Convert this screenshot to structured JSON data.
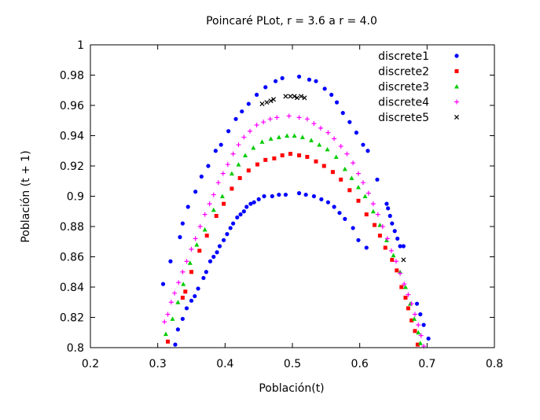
{
  "chart_data": {
    "type": "scatter",
    "title": "Poincaré PLot, r = 3.6 a r = 4.0",
    "xlabel": "Población(t)",
    "ylabel": "Población (t + 1)",
    "xlim": [
      0.2,
      0.8
    ],
    "ylim": [
      0.8,
      1.0
    ],
    "xticks": [
      "0.2",
      "0.3",
      "0.4",
      "0.5",
      "0.6",
      "0.7",
      "0.8"
    ],
    "yticks": [
      "0.8",
      "0.82",
      "0.84",
      "0.86",
      "0.88",
      "0.9",
      "0.92",
      "0.94",
      "0.96",
      "0.98",
      "1"
    ],
    "grid": false,
    "legend_position": "top-right",
    "series": [
      {
        "name": "discrete1",
        "color": "#0000ff",
        "marker": "circle",
        "points": [
          [
            0.308,
            0.842
          ],
          [
            0.319,
            0.857
          ],
          [
            0.326,
            0.802
          ],
          [
            0.33,
            0.812
          ],
          [
            0.333,
            0.873
          ],
          [
            0.337,
            0.882
          ],
          [
            0.337,
            0.819
          ],
          [
            0.343,
            0.826
          ],
          [
            0.345,
            0.893
          ],
          [
            0.35,
            0.831
          ],
          [
            0.355,
            0.834
          ],
          [
            0.356,
            0.903
          ],
          [
            0.36,
            0.839
          ],
          [
            0.365,
            0.913
          ],
          [
            0.368,
            0.846
          ],
          [
            0.372,
            0.85
          ],
          [
            0.375,
            0.92
          ],
          [
            0.378,
            0.857
          ],
          [
            0.383,
            0.86
          ],
          [
            0.386,
            0.93
          ],
          [
            0.388,
            0.863
          ],
          [
            0.392,
            0.867
          ],
          [
            0.394,
            0.934
          ],
          [
            0.398,
            0.871
          ],
          [
            0.403,
            0.875
          ],
          [
            0.405,
            0.943
          ],
          [
            0.408,
            0.879
          ],
          [
            0.412,
            0.882
          ],
          [
            0.416,
            0.951
          ],
          [
            0.418,
            0.886
          ],
          [
            0.423,
            0.888
          ],
          [
            0.425,
            0.956
          ],
          [
            0.428,
            0.89
          ],
          [
            0.432,
            0.893
          ],
          [
            0.435,
            0.961
          ],
          [
            0.438,
            0.895
          ],
          [
            0.443,
            0.896
          ],
          [
            0.447,
            0.967
          ],
          [
            0.45,
            0.898
          ],
          [
            0.458,
            0.9
          ],
          [
            0.46,
            0.972
          ],
          [
            0.47,
            0.9
          ],
          [
            0.475,
            0.976
          ],
          [
            0.48,
            0.901
          ],
          [
            0.485,
            0.978
          ],
          [
            0.49,
            0.901
          ],
          [
            0.51,
            0.902
          ],
          [
            0.51,
            0.979
          ],
          [
            0.52,
            0.901
          ],
          [
            0.525,
            0.977
          ],
          [
            0.532,
            0.9
          ],
          [
            0.535,
            0.976
          ],
          [
            0.543,
            0.898
          ],
          [
            0.548,
            0.971
          ],
          [
            0.553,
            0.896
          ],
          [
            0.558,
            0.967
          ],
          [
            0.562,
            0.893
          ],
          [
            0.566,
            0.962
          ],
          [
            0.57,
            0.889
          ],
          [
            0.575,
            0.955
          ],
          [
            0.578,
            0.885
          ],
          [
            0.585,
            0.949
          ],
          [
            0.59,
            0.879
          ],
          [
            0.595,
            0.942
          ],
          [
            0.598,
            0.871
          ],
          [
            0.605,
            0.934
          ],
          [
            0.61,
            0.866
          ],
          [
            0.612,
            0.93
          ],
          [
            0.626,
            0.911
          ],
          [
            0.64,
            0.895
          ],
          [
            0.642,
            0.892
          ],
          [
            0.645,
            0.887
          ],
          [
            0.648,
            0.882
          ],
          [
            0.652,
            0.877
          ],
          [
            0.656,
            0.872
          ],
          [
            0.66,
            0.867
          ],
          [
            0.665,
            0.867
          ],
          [
            0.685,
            0.829
          ],
          [
            0.69,
            0.822
          ],
          [
            0.695,
            0.815
          ],
          [
            0.702,
            0.806
          ]
        ]
      },
      {
        "name": "discrete2",
        "color": "#ff0000",
        "marker": "square",
        "points": [
          [
            0.315,
            0.804
          ],
          [
            0.337,
            0.833
          ],
          [
            0.341,
            0.837
          ],
          [
            0.35,
            0.85
          ],
          [
            0.362,
            0.864
          ],
          [
            0.373,
            0.874
          ],
          [
            0.387,
            0.887
          ],
          [
            0.398,
            0.895
          ],
          [
            0.41,
            0.905
          ],
          [
            0.422,
            0.912
          ],
          [
            0.435,
            0.917
          ],
          [
            0.448,
            0.921
          ],
          [
            0.46,
            0.924
          ],
          [
            0.473,
            0.925
          ],
          [
            0.485,
            0.927
          ],
          [
            0.497,
            0.928
          ],
          [
            0.51,
            0.927
          ],
          [
            0.522,
            0.926
          ],
          [
            0.535,
            0.923
          ],
          [
            0.547,
            0.92
          ],
          [
            0.56,
            0.916
          ],
          [
            0.572,
            0.911
          ],
          [
            0.585,
            0.904
          ],
          [
            0.598,
            0.897
          ],
          [
            0.61,
            0.888
          ],
          [
            0.622,
            0.881
          ],
          [
            0.63,
            0.874
          ],
          [
            0.638,
            0.866
          ],
          [
            0.648,
            0.858
          ],
          [
            0.655,
            0.851
          ],
          [
            0.662,
            0.84
          ],
          [
            0.668,
            0.833
          ],
          [
            0.672,
            0.826
          ],
          [
            0.677,
            0.818
          ],
          [
            0.682,
            0.811
          ],
          [
            0.686,
            0.802
          ]
        ]
      },
      {
        "name": "discrete3",
        "color": "#00cc00",
        "marker": "triangle",
        "points": [
          [
            0.312,
            0.809
          ],
          [
            0.322,
            0.819
          ],
          [
            0.33,
            0.83
          ],
          [
            0.338,
            0.842
          ],
          [
            0.348,
            0.856
          ],
          [
            0.358,
            0.868
          ],
          [
            0.37,
            0.878
          ],
          [
            0.383,
            0.891
          ],
          [
            0.396,
            0.9
          ],
          [
            0.41,
            0.915
          ],
          [
            0.42,
            0.921
          ],
          [
            0.43,
            0.927
          ],
          [
            0.442,
            0.932
          ],
          [
            0.455,
            0.936
          ],
          [
            0.468,
            0.938
          ],
          [
            0.48,
            0.939
          ],
          [
            0.492,
            0.94
          ],
          [
            0.503,
            0.94
          ],
          [
            0.515,
            0.939
          ],
          [
            0.528,
            0.937
          ],
          [
            0.54,
            0.934
          ],
          [
            0.552,
            0.931
          ],
          [
            0.565,
            0.926
          ],
          [
            0.578,
            0.918
          ],
          [
            0.588,
            0.912
          ],
          [
            0.598,
            0.906
          ],
          [
            0.608,
            0.9
          ],
          [
            0.62,
            0.89
          ],
          [
            0.63,
            0.881
          ],
          [
            0.64,
            0.871
          ],
          [
            0.65,
            0.861
          ],
          [
            0.66,
            0.85
          ],
          [
            0.668,
            0.84
          ],
          [
            0.675,
            0.829
          ],
          [
            0.681,
            0.819
          ],
          [
            0.687,
            0.81
          ],
          [
            0.69,
            0.803
          ]
        ]
      },
      {
        "name": "discrete4",
        "color": "#ff00ff",
        "marker": "plus",
        "points": [
          [
            0.31,
            0.817
          ],
          [
            0.315,
            0.822
          ],
          [
            0.32,
            0.83
          ],
          [
            0.325,
            0.836
          ],
          [
            0.331,
            0.843
          ],
          [
            0.337,
            0.85
          ],
          [
            0.343,
            0.857
          ],
          [
            0.35,
            0.865
          ],
          [
            0.356,
            0.872
          ],
          [
            0.363,
            0.88
          ],
          [
            0.37,
            0.888
          ],
          [
            0.377,
            0.895
          ],
          [
            0.383,
            0.901
          ],
          [
            0.39,
            0.909
          ],
          [
            0.397,
            0.915
          ],
          [
            0.404,
            0.921
          ],
          [
            0.412,
            0.928
          ],
          [
            0.42,
            0.934
          ],
          [
            0.428,
            0.939
          ],
          [
            0.437,
            0.943
          ],
          [
            0.447,
            0.947
          ],
          [
            0.457,
            0.949
          ],
          [
            0.467,
            0.951
          ],
          [
            0.477,
            0.952
          ],
          [
            0.495,
            0.953
          ],
          [
            0.51,
            0.952
          ],
          [
            0.522,
            0.951
          ],
          [
            0.532,
            0.948
          ],
          [
            0.542,
            0.945
          ],
          [
            0.553,
            0.942
          ],
          [
            0.562,
            0.938
          ],
          [
            0.572,
            0.933
          ],
          [
            0.581,
            0.928
          ],
          [
            0.59,
            0.922
          ],
          [
            0.598,
            0.915
          ],
          [
            0.605,
            0.909
          ],
          [
            0.613,
            0.902
          ],
          [
            0.62,
            0.895
          ],
          [
            0.627,
            0.888
          ],
          [
            0.634,
            0.88
          ],
          [
            0.641,
            0.872
          ],
          [
            0.647,
            0.864
          ],
          [
            0.654,
            0.857
          ],
          [
            0.66,
            0.849
          ],
          [
            0.666,
            0.842
          ],
          [
            0.672,
            0.835
          ],
          [
            0.677,
            0.829
          ],
          [
            0.682,
            0.822
          ],
          [
            0.687,
            0.815
          ],
          [
            0.691,
            0.808
          ],
          [
            0.695,
            0.801
          ]
        ]
      },
      {
        "name": "discrete5",
        "color": "#000000",
        "marker": "cross",
        "points": [
          [
            0.455,
            0.961
          ],
          [
            0.462,
            0.962
          ],
          [
            0.468,
            0.963
          ],
          [
            0.472,
            0.964
          ],
          [
            0.49,
            0.966
          ],
          [
            0.497,
            0.966
          ],
          [
            0.503,
            0.966
          ],
          [
            0.507,
            0.965
          ],
          [
            0.513,
            0.966
          ],
          [
            0.518,
            0.965
          ],
          [
            0.665,
            0.858
          ]
        ]
      }
    ]
  }
}
